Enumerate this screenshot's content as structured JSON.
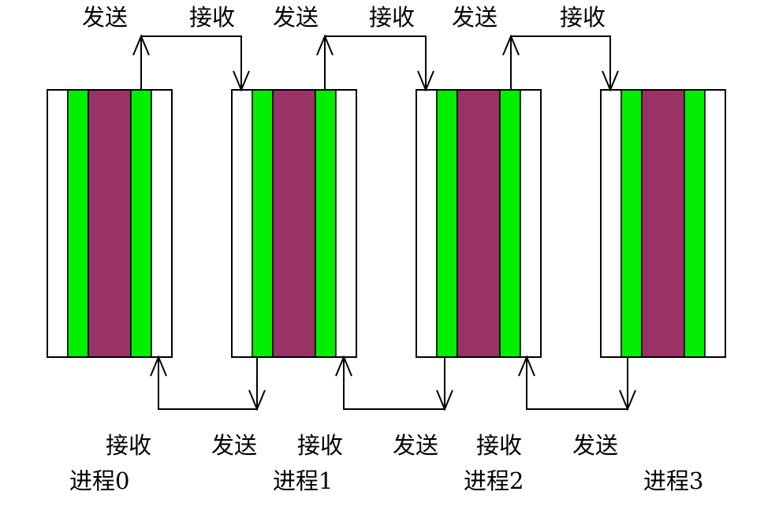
{
  "colors": {
    "halo": "#ffffff",
    "boundary": "#00ee00",
    "interior": "#993366",
    "line": "#000000"
  },
  "labels": {
    "send": "发送",
    "receive": "接收"
  },
  "processes": [
    {
      "name": "进程0"
    },
    {
      "name": "进程1"
    },
    {
      "name": "进程2"
    },
    {
      "name": "进程3"
    }
  ],
  "top_exchanges": [
    {
      "send_label": "发送",
      "receive_label": "接收"
    },
    {
      "send_label": "发送",
      "receive_label": "接收"
    },
    {
      "send_label": "发送",
      "receive_label": "接收"
    }
  ],
  "bottom_exchanges": [
    {
      "receive_label": "接收",
      "send_label": "发送"
    },
    {
      "receive_label": "接收",
      "send_label": "发送"
    },
    {
      "receive_label": "接收",
      "send_label": "发送"
    }
  ]
}
